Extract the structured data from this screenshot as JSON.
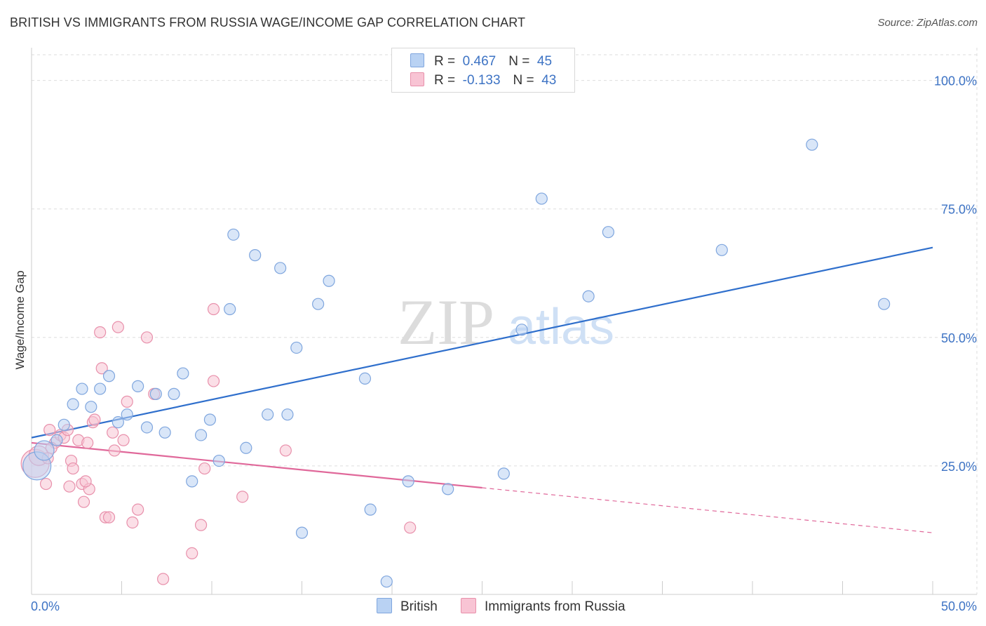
{
  "header": {
    "title": "BRITISH VS IMMIGRANTS FROM RUSSIA WAGE/INCOME GAP CORRELATION CHART",
    "source": "Source: ZipAtlas.com"
  },
  "legend": {
    "rows": [
      {
        "r_label": "R =",
        "r_value": "0.467",
        "n_label": "N =",
        "n_value": "45"
      },
      {
        "r_label": "R =",
        "r_value": "-0.133",
        "n_label": "N =",
        "n_value": "43"
      }
    ]
  },
  "watermark": {
    "zip": "ZIP",
    "atlas": "atlas"
  },
  "colors": {
    "british_fill": "#b9d2f3",
    "british_stroke": "#7fa6de",
    "british_line": "#2f6fcc",
    "russia_fill": "#f8c4d4",
    "russia_stroke": "#e890ab",
    "russia_line": "#e0689a",
    "tick_label": "#3d73c4",
    "grid": "#dddddd"
  },
  "chart_data": {
    "type": "scatter",
    "title": "BRITISH VS IMMIGRANTS FROM RUSSIA WAGE/INCOME GAP CORRELATION CHART",
    "xlabel": "",
    "ylabel": "Wage/Income Gap",
    "xlim": [
      0,
      50
    ],
    "ylim": [
      0,
      105
    ],
    "x_tick_labels": [
      "0.0%",
      "50.0%"
    ],
    "y_ticks": [
      25,
      50,
      75,
      100
    ],
    "y_tick_labels": [
      "25.0%",
      "50.0%",
      "75.0%",
      "100.0%"
    ],
    "legend_position": "top-center",
    "series": [
      {
        "name": "British",
        "r": 0.467,
        "n": 45,
        "trend": {
          "x": [
            0,
            50
          ],
          "y": [
            30.5,
            67.5
          ],
          "dashed_from": null
        },
        "points": [
          {
            "x": 0.3,
            "y": 25.0,
            "size": "large"
          },
          {
            "x": 0.7,
            "y": 28.0,
            "size": "medium"
          },
          {
            "x": 1.4,
            "y": 30.0
          },
          {
            "x": 1.8,
            "y": 33.0
          },
          {
            "x": 2.3,
            "y": 37.0
          },
          {
            "x": 2.8,
            "y": 40.0
          },
          {
            "x": 3.3,
            "y": 36.5
          },
          {
            "x": 3.8,
            "y": 40.0
          },
          {
            "x": 4.3,
            "y": 42.5
          },
          {
            "x": 4.8,
            "y": 33.5
          },
          {
            "x": 5.3,
            "y": 35.0
          },
          {
            "x": 5.9,
            "y": 40.5
          },
          {
            "x": 6.4,
            "y": 32.5
          },
          {
            "x": 6.9,
            "y": 39.0
          },
          {
            "x": 7.4,
            "y": 31.5
          },
          {
            "x": 7.9,
            "y": 39.0
          },
          {
            "x": 8.4,
            "y": 43.0
          },
          {
            "x": 8.9,
            "y": 22.0
          },
          {
            "x": 9.4,
            "y": 31.0
          },
          {
            "x": 9.9,
            "y": 34.0
          },
          {
            "x": 10.4,
            "y": 26.0
          },
          {
            "x": 11.0,
            "y": 55.5
          },
          {
            "x": 11.2,
            "y": 70.0
          },
          {
            "x": 11.9,
            "y": 28.5
          },
          {
            "x": 12.4,
            "y": 66.0
          },
          {
            "x": 13.1,
            "y": 35.0
          },
          {
            "x": 13.8,
            "y": 63.5
          },
          {
            "x": 14.2,
            "y": 35.0
          },
          {
            "x": 14.7,
            "y": 48.0
          },
          {
            "x": 15.0,
            "y": 12.0
          },
          {
            "x": 15.9,
            "y": 56.5
          },
          {
            "x": 16.5,
            "y": 61.0
          },
          {
            "x": 18.5,
            "y": 42.0
          },
          {
            "x": 18.8,
            "y": 16.5
          },
          {
            "x": 19.7,
            "y": 2.5
          },
          {
            "x": 20.9,
            "y": 22.0
          },
          {
            "x": 23.1,
            "y": 20.5
          },
          {
            "x": 26.2,
            "y": 23.5
          },
          {
            "x": 27.2,
            "y": 51.5
          },
          {
            "x": 28.3,
            "y": 77.0
          },
          {
            "x": 30.9,
            "y": 58.0
          },
          {
            "x": 32.0,
            "y": 70.5
          },
          {
            "x": 38.3,
            "y": 67.0
          },
          {
            "x": 43.3,
            "y": 87.5
          },
          {
            "x": 47.3,
            "y": 56.5
          }
        ]
      },
      {
        "name": "Immigrants from Russia",
        "r": -0.133,
        "n": 43,
        "trend": {
          "x": [
            0,
            50
          ],
          "y": [
            29.5,
            12.0
          ],
          "dashed_from": 25
        },
        "points": [
          {
            "x": 0.2,
            "y": 25.5,
            "size": "large"
          },
          {
            "x": 0.4,
            "y": 27.0,
            "size": "medium"
          },
          {
            "x": 0.8,
            "y": 21.5
          },
          {
            "x": 1.0,
            "y": 32.0
          },
          {
            "x": 1.3,
            "y": 29.5
          },
          {
            "x": 1.6,
            "y": 31.0
          },
          {
            "x": 1.8,
            "y": 30.5
          },
          {
            "x": 2.0,
            "y": 32.0
          },
          {
            "x": 2.1,
            "y": 21.0
          },
          {
            "x": 2.2,
            "y": 26.0
          },
          {
            "x": 2.3,
            "y": 24.5
          },
          {
            "x": 2.6,
            "y": 30.0
          },
          {
            "x": 2.8,
            "y": 21.5
          },
          {
            "x": 2.9,
            "y": 18.0
          },
          {
            "x": 3.1,
            "y": 29.5
          },
          {
            "x": 3.2,
            "y": 20.5
          },
          {
            "x": 3.4,
            "y": 33.5
          },
          {
            "x": 3.5,
            "y": 34.0
          },
          {
            "x": 3.8,
            "y": 51.0
          },
          {
            "x": 3.9,
            "y": 44.0
          },
          {
            "x": 4.1,
            "y": 15.0
          },
          {
            "x": 4.3,
            "y": 15.0
          },
          {
            "x": 4.5,
            "y": 31.5
          },
          {
            "x": 4.6,
            "y": 28.0
          },
          {
            "x": 4.8,
            "y": 52.0
          },
          {
            "x": 5.1,
            "y": 30.0
          },
          {
            "x": 5.3,
            "y": 37.5
          },
          {
            "x": 5.6,
            "y": 14.0
          },
          {
            "x": 5.9,
            "y": 16.5
          },
          {
            "x": 6.4,
            "y": 50.0
          },
          {
            "x": 6.8,
            "y": 39.0
          },
          {
            "x": 7.3,
            "y": 3.0
          },
          {
            "x": 8.9,
            "y": 8.0
          },
          {
            "x": 9.4,
            "y": 13.5
          },
          {
            "x": 9.6,
            "y": 24.5
          },
          {
            "x": 10.1,
            "y": 55.5
          },
          {
            "x": 10.1,
            "y": 41.5
          },
          {
            "x": 11.7,
            "y": 19.0
          },
          {
            "x": 14.1,
            "y": 28.0
          },
          {
            "x": 21.0,
            "y": 13.0
          },
          {
            "x": 1.1,
            "y": 28.5
          },
          {
            "x": 0.9,
            "y": 26.5
          },
          {
            "x": 3.0,
            "y": 22.0
          }
        ]
      }
    ]
  },
  "bottom_legend": {
    "items": [
      {
        "label": "British"
      },
      {
        "label": "Immigrants from Russia"
      }
    ]
  }
}
